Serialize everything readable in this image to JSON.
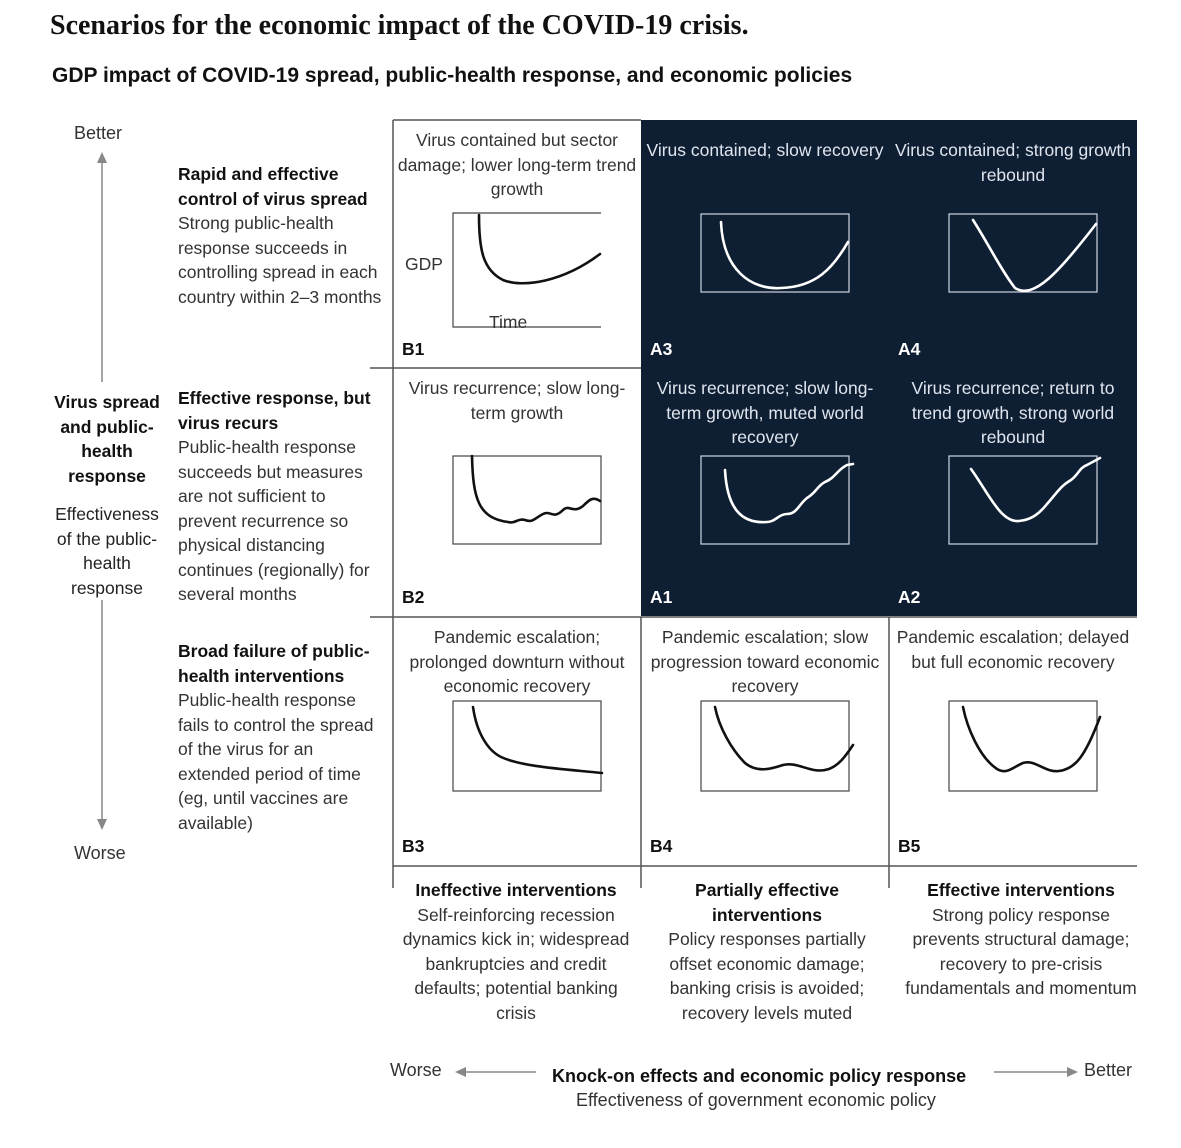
{
  "title": "Scenarios for the economic impact of the COVID-19 crisis.",
  "subtitle": "GDP impact of COVID-19 spread, public-health response, and economic policies",
  "y_axis": {
    "top_label": "Better",
    "bottom_label": "Worse",
    "heading": "Virus spread and public-health response",
    "subheading": "Effectiveness of the public-health response"
  },
  "x_axis": {
    "left_label": "Worse",
    "right_label": "Better",
    "heading": "Knock-on effects and economic policy response",
    "subheading": "Effectiveness of government economic policy"
  },
  "rows": [
    {
      "heading": "Rapid and effective control of virus spread",
      "body": "Strong public-health response succeeds in controlling spread in each country within 2–3 months"
    },
    {
      "heading": "Effective response, but virus recurs",
      "body": "Public-health response succeeds but measures are not sufficient to prevent recurrence so physical distancing continues (regionally) for several months"
    },
    {
      "heading": "Broad failure of public-health interventions",
      "body": "Public-health response fails to control the spread of the virus for an extended period of time (eg, until vaccines are available)"
    }
  ],
  "columns": [
    {
      "heading": "Ineffective interventions",
      "body": "Self-reinforcing recession dynamics kick in; widespread bankruptcies and credit defaults; potential banking crisis"
    },
    {
      "heading": "Partially effective interventions",
      "body": "Policy responses partially offset economic damage; banking crisis is avoided; recovery levels muted"
    },
    {
      "heading": "Effective interventions",
      "body": "Strong policy response prevents structural damage; recovery to pre-crisis fundamentals and momentum"
    }
  ],
  "mini_axes": {
    "y": "GDP",
    "x": "Time"
  },
  "cells": [
    {
      "code": "B1",
      "theme": "light",
      "caption": "Virus contained but sector damage; lower long-term trend growth",
      "curve": "b1"
    },
    {
      "code": "A3",
      "theme": "dark",
      "caption": "Virus contained; slow recovery",
      "curve": "a3"
    },
    {
      "code": "A4",
      "theme": "dark",
      "caption": "Virus contained; strong growth rebound",
      "curve": "a4"
    },
    {
      "code": "B2",
      "theme": "light",
      "caption": "Virus recurrence; slow long-term growth",
      "curve": "b2"
    },
    {
      "code": "A1",
      "theme": "dark",
      "caption": "Virus recurrence; slow long-term growth, muted world recovery",
      "curve": "a1"
    },
    {
      "code": "A2",
      "theme": "dark",
      "caption": "Virus recurrence; return to trend growth, strong world rebound",
      "curve": "a2"
    },
    {
      "code": "B3",
      "theme": "light",
      "caption": "Pandemic escalation; prolonged downturn without economic recovery",
      "curve": "b3"
    },
    {
      "code": "B4",
      "theme": "light",
      "caption": "Pandemic escalation; slow progression toward economic recovery",
      "curve": "b4"
    },
    {
      "code": "B5",
      "theme": "light",
      "caption": "Pandemic escalation; delayed but full economic recovery",
      "curve": "b5"
    }
  ],
  "colors": {
    "dark_cell": "#0f1f33",
    "light_cell": "#ffffff",
    "line": "#555555"
  }
}
